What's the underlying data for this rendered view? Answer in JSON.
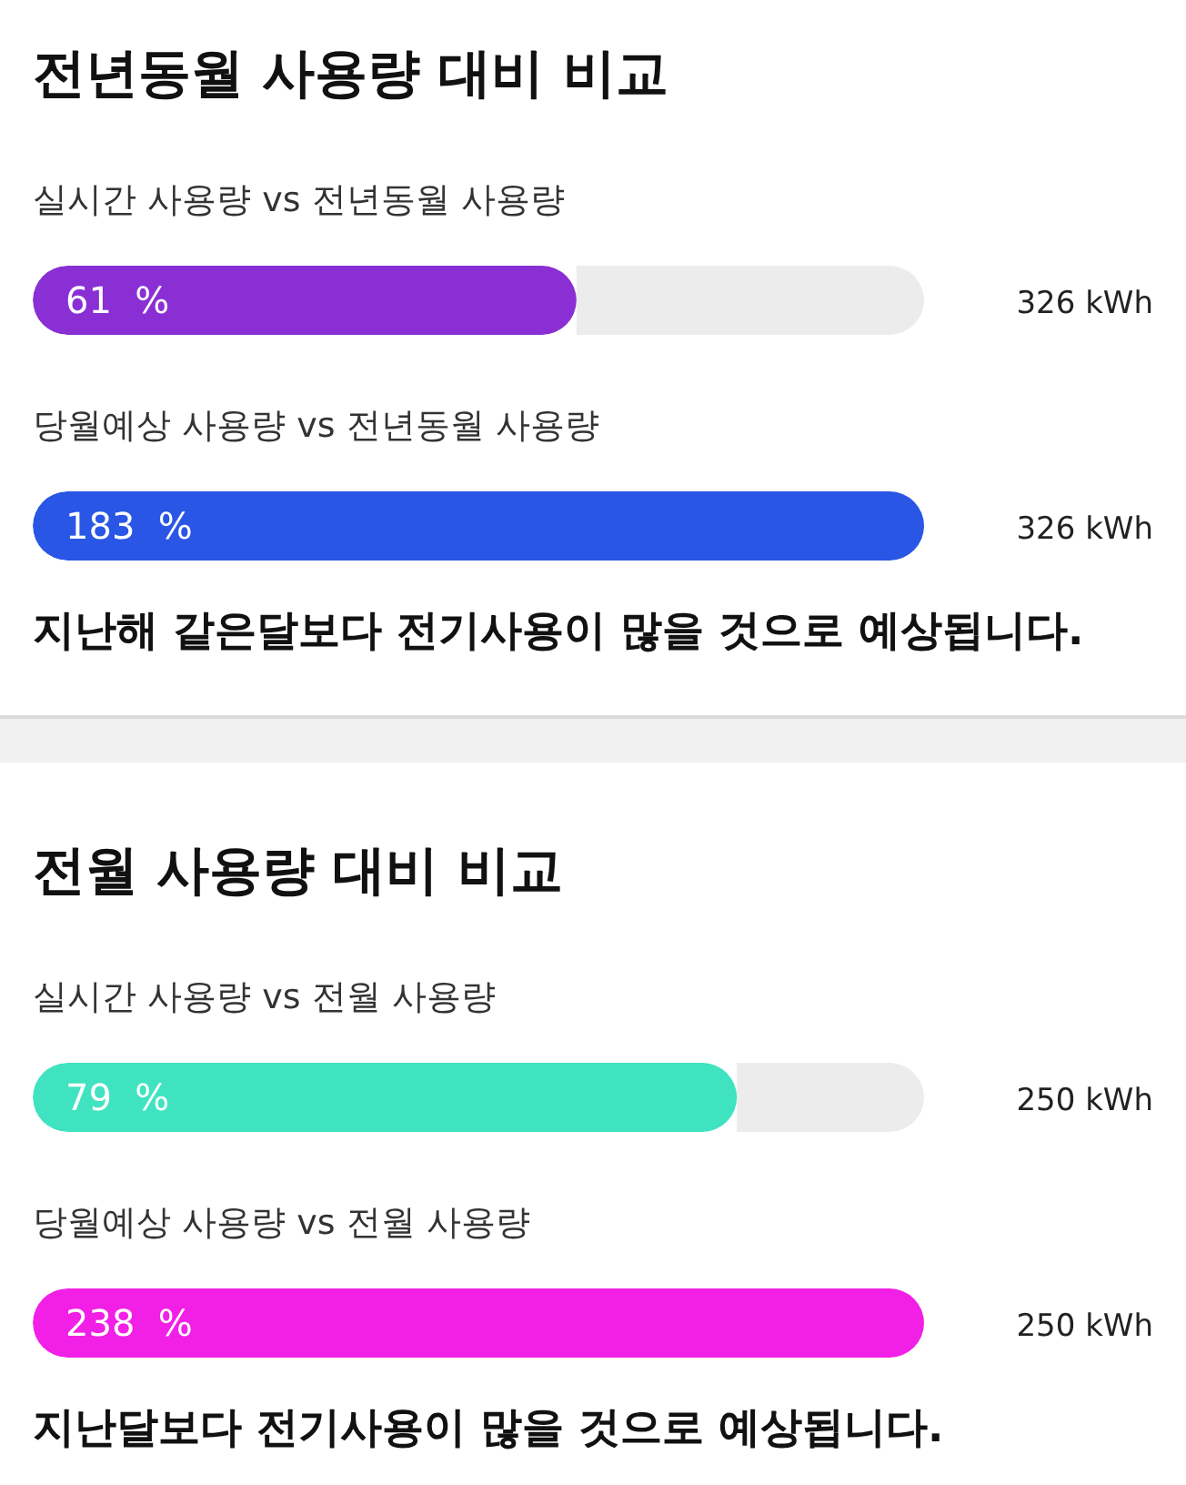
{
  "chart_data": [
    {
      "type": "other",
      "title": "전년동월 사용량 대비 비교",
      "categories": [
        "실시간 사용량 vs 전년동월 사용량",
        "당월예상 사용량 vs 전년동월 사용량"
      ],
      "values": [
        61,
        183
      ],
      "colors": [
        "#8a2fd4",
        "#2a56e6"
      ],
      "value_labels": [
        "61  %",
        "183  %"
      ],
      "annotations": [
        "326 kWh",
        "326 kWh",
        "지난해 같은달보다 전기사용이 많을 것으로 예상됩니다."
      ]
    },
    {
      "type": "other",
      "title": "전월 사용량 대비 비교",
      "categories": [
        "실시간 사용량 vs 전월 사용량",
        "당월예상 사용량 vs 전월 사용량"
      ],
      "values": [
        79,
        238
      ],
      "colors": [
        "#40e3c0",
        "#f21fe6"
      ],
      "value_labels": [
        "79  %",
        "238  %"
      ],
      "annotations": [
        "250 kWh",
        "250 kWh",
        "지난달보다 전기사용이 많을 것으로 예상됩니다."
      ]
    }
  ]
}
